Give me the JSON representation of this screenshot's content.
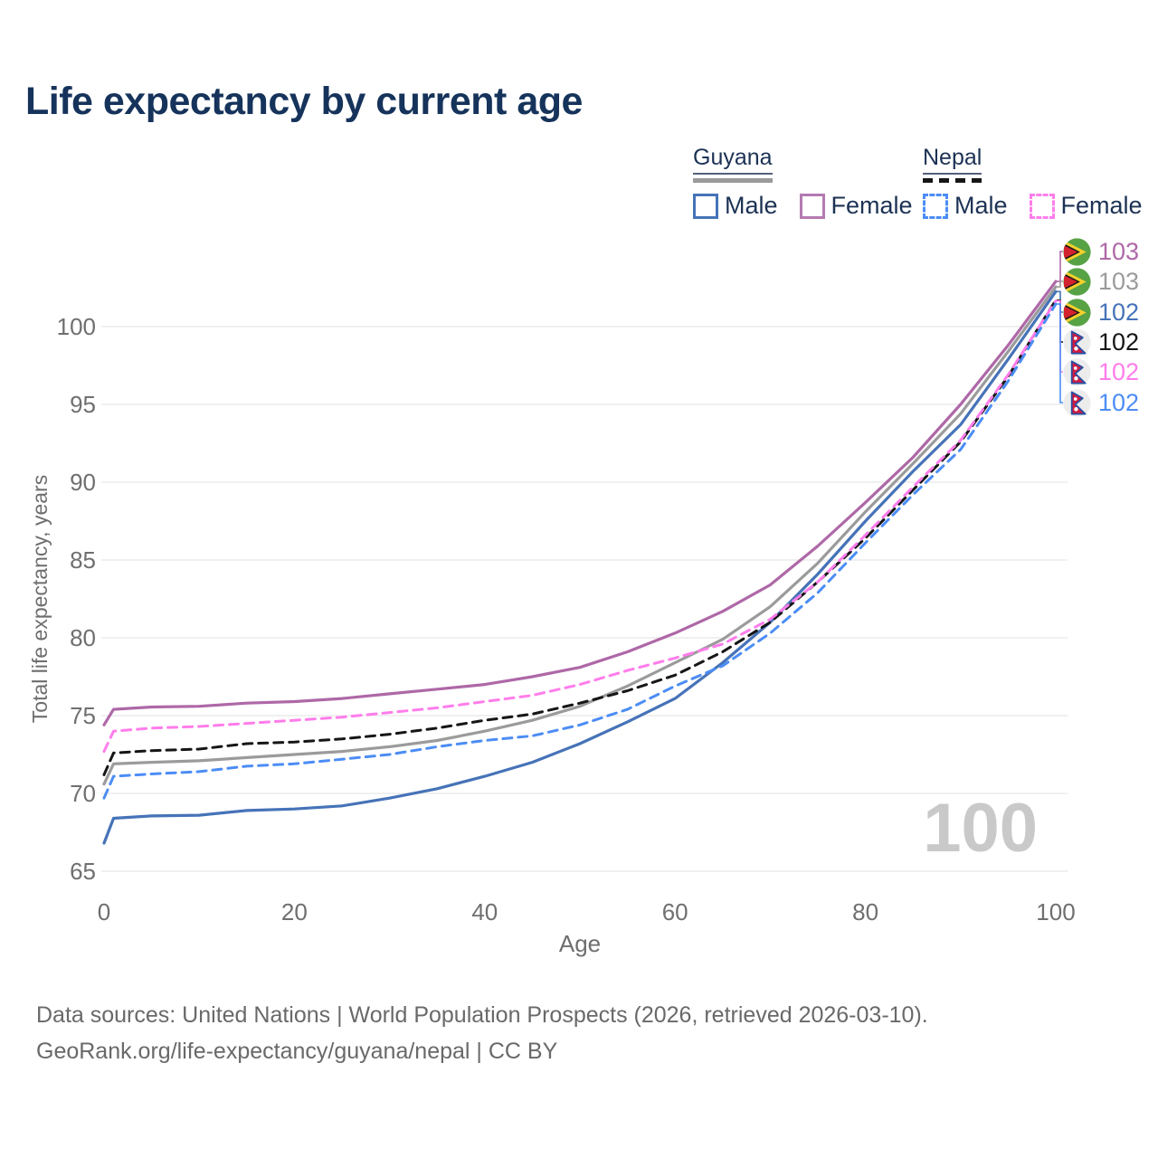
{
  "header": {
    "title": "Life expectancy by current age"
  },
  "legend": {
    "groups": [
      {
        "label": "Guyana",
        "sample_line_style": "solid",
        "sample_line_color": "#9a9a9a",
        "items": [
          {
            "label": "Male",
            "color": "#4673b8",
            "dashed": false
          },
          {
            "label": "Female",
            "color": "#b47ab2",
            "dashed": false
          }
        ]
      },
      {
        "label": "Nepal",
        "sample_line_style": "dashed",
        "sample_line_color": "#161616",
        "items": [
          {
            "label": "Male",
            "color": "#4c8df5",
            "dashed": true
          },
          {
            "label": "Female",
            "color": "#ff7deb",
            "dashed": true
          }
        ]
      }
    ]
  },
  "axes": {
    "y_title": "Total life expectancy, years",
    "y_ticks": [
      65,
      70,
      75,
      80,
      85,
      90,
      95,
      100
    ],
    "x_ticks": [
      0,
      20,
      40,
      60,
      80,
      100
    ],
    "x_title": "Age"
  },
  "watermark": "100",
  "annotations": [
    {
      "flag": "guyana-flag",
      "series": "Guyana Female",
      "value": "103",
      "color": "#ae68a7"
    },
    {
      "flag": "guyana-flag",
      "series": "Guyana Both sexes",
      "value": "103",
      "color": "#9b9b9b"
    },
    {
      "flag": "guyana-flag",
      "series": "Guyana Male",
      "value": "102",
      "color": "#4673b8"
    },
    {
      "flag": "nepal-flag",
      "series": "Nepal Both sexes",
      "value": "102",
      "color": "#161616"
    },
    {
      "flag": "nepal-flag",
      "series": "Nepal Female",
      "value": "102",
      "color": "#ff7deb"
    },
    {
      "flag": "nepal-flag",
      "series": "Nepal Male",
      "value": "102",
      "color": "#4c8df5"
    }
  ],
  "footer": {
    "line1": "Data sources: United Nations | World Population Prospects (2026, retrieved 2026-03-10).",
    "line2": "GeoRank.org/life-expectancy/guyana/nepal | CC BY"
  },
  "chart_data": {
    "type": "line",
    "title": "Life expectancy by current age",
    "xlabel": "Age",
    "ylabel": "Total life expectancy, years",
    "xlim": [
      0,
      100
    ],
    "ylim": [
      65,
      103.5
    ],
    "grid": "horizontal-only",
    "legend_position": "top-right",
    "x": [
      0,
      1,
      5,
      10,
      15,
      20,
      25,
      30,
      35,
      40,
      45,
      50,
      55,
      60,
      65,
      70,
      75,
      80,
      85,
      90,
      95,
      100
    ],
    "series": [
      {
        "name": "Guyana Female",
        "color": "#ae68a7",
        "dash": false,
        "end_label": "103",
        "values": [
          74.4,
          75.4,
          75.55,
          75.6,
          75.8,
          75.9,
          76.1,
          76.4,
          76.7,
          77.0,
          77.5,
          78.1,
          79.1,
          80.3,
          81.7,
          83.4,
          85.9,
          88.7,
          91.6,
          95.0,
          98.8,
          102.9
        ]
      },
      {
        "name": "Guyana Both sexes",
        "color": "#9b9b9b",
        "dash": false,
        "end_label": "103",
        "values": [
          70.6,
          71.9,
          72.0,
          72.1,
          72.3,
          72.5,
          72.7,
          73.0,
          73.4,
          74.0,
          74.7,
          75.6,
          76.9,
          78.4,
          79.9,
          82.0,
          84.8,
          88.1,
          91.2,
          94.4,
          98.4,
          102.55
        ]
      },
      {
        "name": "Guyana Male",
        "color": "#4673b8",
        "dash": false,
        "end_label": "102",
        "values": [
          66.8,
          68.4,
          68.55,
          68.6,
          68.9,
          69.0,
          69.2,
          69.7,
          70.3,
          71.1,
          72.0,
          73.2,
          74.6,
          76.1,
          78.4,
          81.0,
          84.1,
          87.5,
          90.7,
          93.7,
          97.9,
          102.25
        ]
      },
      {
        "name": "Nepal Both sexes",
        "color": "#161616",
        "dash": true,
        "end_label": "102",
        "values": [
          71.2,
          72.6,
          72.75,
          72.85,
          73.2,
          73.3,
          73.5,
          73.8,
          74.2,
          74.7,
          75.1,
          75.8,
          76.6,
          77.6,
          79.1,
          81.0,
          83.6,
          86.4,
          89.5,
          92.6,
          96.8,
          101.7
        ]
      },
      {
        "name": "Nepal Female",
        "color": "#ff7deb",
        "dash": true,
        "end_label": "102",
        "values": [
          72.7,
          74.0,
          74.2,
          74.3,
          74.5,
          74.7,
          74.9,
          75.2,
          75.5,
          75.9,
          76.3,
          77.0,
          77.9,
          78.7,
          79.6,
          81.2,
          83.6,
          86.6,
          89.7,
          92.7,
          96.9,
          101.65
        ]
      },
      {
        "name": "Nepal Male",
        "color": "#4c8df5",
        "dash": true,
        "end_label": "102",
        "values": [
          69.7,
          71.1,
          71.25,
          71.4,
          71.75,
          71.9,
          72.2,
          72.5,
          73.0,
          73.4,
          73.7,
          74.4,
          75.4,
          76.9,
          78.2,
          80.3,
          82.9,
          86.1,
          89.2,
          92.1,
          96.5,
          101.45
        ]
      }
    ]
  }
}
